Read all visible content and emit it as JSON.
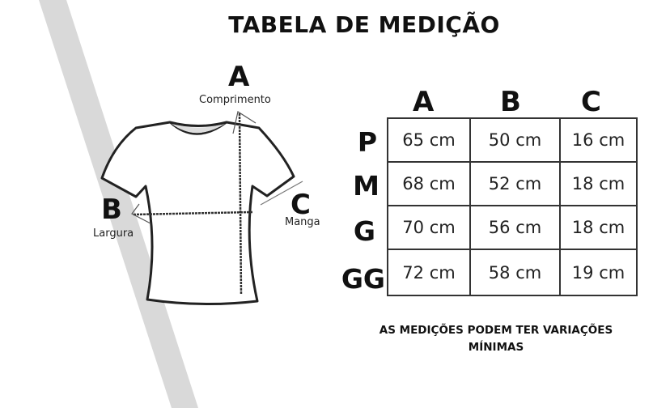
{
  "title": "TABELA DE MEDIÇÃO",
  "diagram": {
    "a": {
      "letter": "A",
      "label": "Comprimento"
    },
    "b": {
      "letter": "B",
      "label": "Largura"
    },
    "c": {
      "letter": "C",
      "label": "Manga"
    }
  },
  "table": {
    "columns": [
      "A",
      "B",
      "C"
    ],
    "rows": [
      {
        "size": "P",
        "values": [
          "65 cm",
          "50 cm",
          "16 cm"
        ]
      },
      {
        "size": "M",
        "values": [
          "68 cm",
          "52 cm",
          "18 cm"
        ]
      },
      {
        "size": "G",
        "values": [
          "70 cm",
          "56 cm",
          "18 cm"
        ]
      },
      {
        "size": "GG",
        "values": [
          "72 cm",
          "58 cm",
          "19 cm"
        ]
      }
    ]
  },
  "note": [
    "AS MEDIÇÕES PODEM TER VARIAÇÕES",
    "MÍNIMAS"
  ],
  "colors": {
    "stripe": "#d9d9d9",
    "ink": "#111111"
  }
}
